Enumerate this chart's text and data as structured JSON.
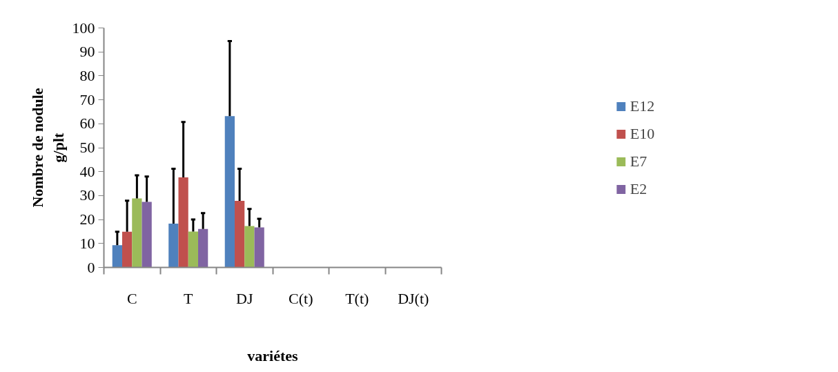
{
  "chart_data": {
    "type": "bar",
    "xlabel": "variétes",
    "ylabel": "Nombre de nodule\ng/plt",
    "categories": [
      "C",
      "T",
      "DJ",
      "C(t)",
      "T(t)",
      "DJ(t)"
    ],
    "series": [
      {
        "name": "E12",
        "color": "#4f81bd",
        "values": [
          9.3,
          18.3,
          63.2,
          null,
          null,
          null
        ],
        "errors": [
          [
            9.3,
            14.9
          ],
          [
            18.3,
            41.2
          ],
          [
            63.2,
            94.5
          ],
          null,
          null,
          null
        ]
      },
      {
        "name": "E10",
        "color": "#c0504d",
        "values": [
          14.9,
          37.6,
          27.8,
          null,
          null,
          null
        ],
        "errors": [
          [
            14.9,
            27.9
          ],
          [
            37.6,
            60.7
          ],
          [
            27.8,
            41.2
          ],
          null,
          null,
          null
        ]
      },
      {
        "name": "E7",
        "color": "#9bbb59",
        "values": [
          28.8,
          15.0,
          17.3,
          null,
          null,
          null
        ],
        "errors": [
          [
            28.8,
            38.5
          ],
          [
            15.0,
            20.0
          ],
          [
            17.3,
            24.4
          ],
          null,
          null,
          null
        ]
      },
      {
        "name": "E2",
        "color": "#8064a2",
        "values": [
          27.4,
          16.1,
          16.7,
          null,
          null,
          null
        ],
        "errors": [
          [
            27.4,
            38.0
          ],
          [
            16.1,
            22.7
          ],
          [
            16.7,
            20.3
          ],
          null,
          null,
          null
        ]
      }
    ],
    "ylim": [
      0,
      100
    ],
    "yticks": [
      0,
      10,
      20,
      30,
      40,
      50,
      60,
      70,
      80,
      90,
      100
    ],
    "grid": false,
    "legend": "right"
  }
}
